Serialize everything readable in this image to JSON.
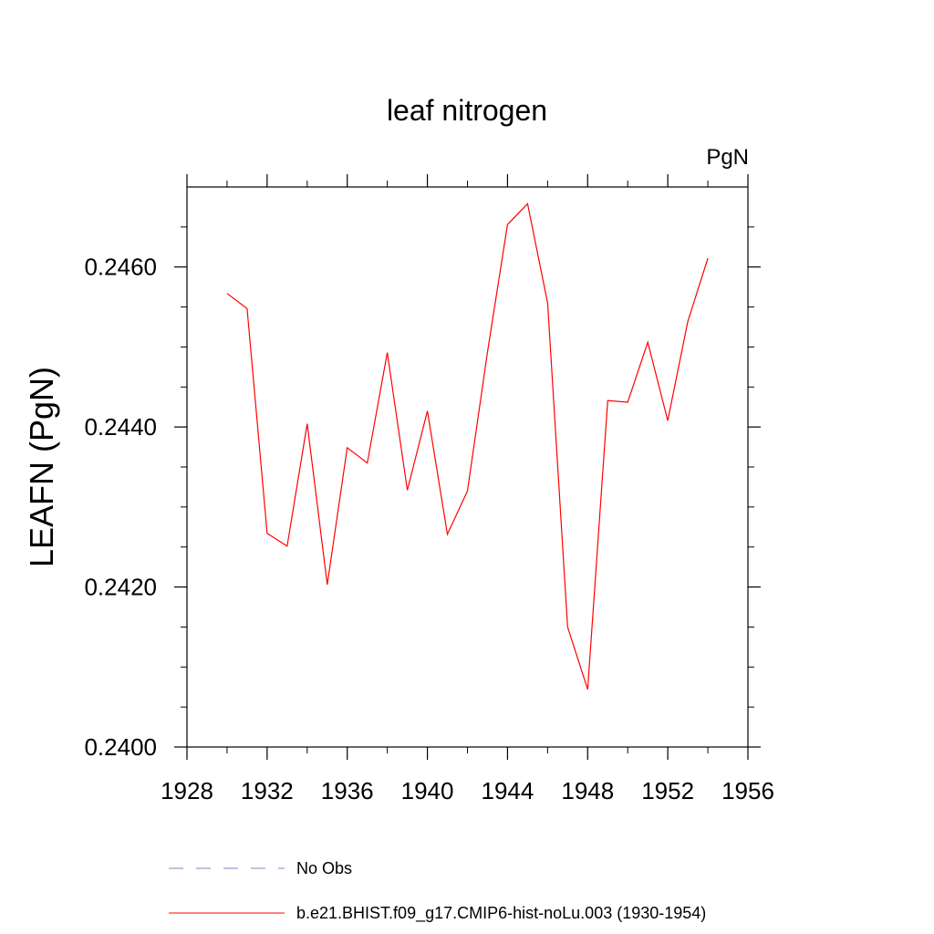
{
  "chart_data": {
    "type": "line",
    "title": "leaf nitrogen",
    "units_label": "PgN",
    "xlabel": "",
    "ylabel": "LEAFN  (PgN)",
    "xlim": [
      1928,
      1956
    ],
    "ylim": [
      0.24,
      0.247
    ],
    "x_ticks": [
      1928,
      1932,
      1936,
      1940,
      1944,
      1948,
      1952,
      1956
    ],
    "y_ticks": [
      "0.2400",
      "0.2420",
      "0.2440",
      "0.2460"
    ],
    "x_minor_step": 2,
    "y_minor_step": 0.0005,
    "series": [
      {
        "name": "b.e21.BHIST.f09_g17.CMIP6-hist-noLu.003 (1930-1954)",
        "color": "#ff0000",
        "style": "solid",
        "x": [
          1930,
          1931,
          1932,
          1933,
          1934,
          1935,
          1936,
          1937,
          1938,
          1939,
          1940,
          1941,
          1942,
          1943,
          1944,
          1945,
          1946,
          1947,
          1948,
          1949,
          1950,
          1951,
          1952,
          1953,
          1954
        ],
        "values": [
          0.24567,
          0.24548,
          0.24267,
          0.24251,
          0.24404,
          0.24203,
          0.24374,
          0.24355,
          0.24493,
          0.24321,
          0.2442,
          0.24266,
          0.2432,
          0.24494,
          0.24653,
          0.24679,
          0.24555,
          0.2415,
          0.24072,
          0.24433,
          0.24431,
          0.24506,
          0.24408,
          0.24532,
          0.24611
        ]
      }
    ],
    "legend": [
      {
        "label": "No Obs",
        "color": "#8a7fc0",
        "style": "dashed"
      },
      {
        "label": "b.e21.BHIST.f09_g17.CMIP6-hist-noLu.003 (1930-1954)",
        "color": "#ff0000",
        "style": "solid"
      }
    ]
  }
}
